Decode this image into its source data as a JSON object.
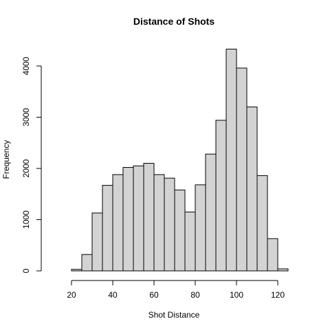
{
  "chart_data": {
    "type": "bar",
    "title": "Distance of Shots",
    "xlabel": "Shot Distance",
    "ylabel": "Frequency",
    "bin_edges": [
      20,
      25,
      30,
      35,
      40,
      45,
      50,
      55,
      60,
      65,
      70,
      75,
      80,
      85,
      90,
      95,
      100,
      105,
      110,
      115,
      120,
      125
    ],
    "values": [
      30,
      320,
      1130,
      1670,
      1880,
      2020,
      2050,
      2100,
      1880,
      1810,
      1580,
      1150,
      1680,
      2280,
      2940,
      4330,
      3960,
      3200,
      1860,
      630,
      40
    ],
    "xlim": [
      10,
      130
    ],
    "ylim": [
      0,
      4400
    ],
    "x_ticks": [
      20,
      40,
      60,
      80,
      100,
      120
    ],
    "y_ticks": [
      0,
      1000,
      2000,
      3000,
      4000
    ],
    "bar_color": "#d3d3d3",
    "edge_color": "#000000",
    "grid": false
  }
}
